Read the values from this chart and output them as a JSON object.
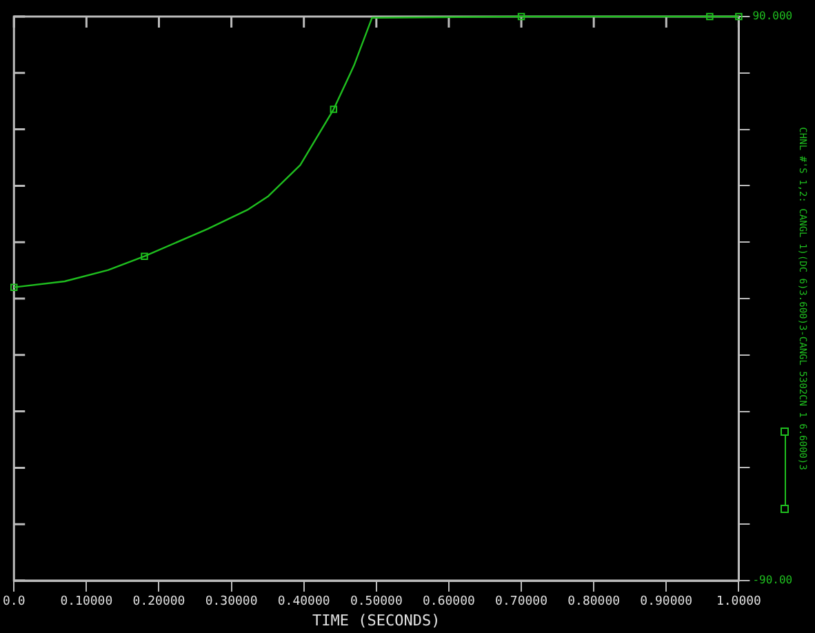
{
  "chart_data": {
    "type": "line",
    "xlabel": "TIME (SECONDS)",
    "ylabel": "CHNL #'S 1,2: CANGL 1)(DC 6)3.600)3-CANGL 5302CN 1 6.6000)3",
    "xlim": [
      0,
      1
    ],
    "ylim": [
      -90,
      90
    ],
    "xticks": [
      {
        "value": 0,
        "label": "0.0"
      },
      {
        "value": 0.1,
        "label": "0.10000"
      },
      {
        "value": 0.2,
        "label": "0.20000"
      },
      {
        "value": 0.3,
        "label": "0.30000"
      },
      {
        "value": 0.4,
        "label": "0.40000"
      },
      {
        "value": 0.5,
        "label": "0.50000"
      },
      {
        "value": 0.6,
        "label": "0.60000"
      },
      {
        "value": 0.7,
        "label": "0.70000"
      },
      {
        "value": 0.8,
        "label": "0.80000"
      },
      {
        "value": 0.9,
        "label": "0.90000"
      },
      {
        "value": 1,
        "label": "1.0000"
      }
    ],
    "yticks": [
      {
        "value": -90,
        "label": "-90.00"
      },
      {
        "value": -72,
        "label": null
      },
      {
        "value": -54,
        "label": null
      },
      {
        "value": -36,
        "label": null
      },
      {
        "value": -18,
        "label": null
      },
      {
        "value": 0,
        "label": null
      },
      {
        "value": 18,
        "label": null
      },
      {
        "value": 36,
        "label": null
      },
      {
        "value": 54,
        "label": null
      },
      {
        "value": 72,
        "label": null
      },
      {
        "value": 90,
        "label": "90.000"
      }
    ],
    "grid": false,
    "legend": false,
    "series": [
      {
        "color": "#1fbf1f",
        "marker": "none",
        "x": [
          0,
          0.07,
          0.13,
          0.18,
          0.267,
          0.322,
          0.351,
          0.395,
          0.441,
          0.469,
          0.494,
          0.7,
          0.96,
          1.0
        ],
        "values": [
          3.6,
          5.5,
          9.1,
          13.5,
          22.2,
          28.3,
          32.7,
          42.6,
          60.4,
          74.3,
          89.6,
          90,
          90,
          90
        ]
      },
      {
        "type": "scatter",
        "color": "#1fbf1f",
        "marker": "square",
        "x": [
          0,
          0.18,
          0.441,
          0.7,
          0.96,
          1.0
        ],
        "values": [
          3.6,
          13.5,
          60.4,
          90,
          90,
          90
        ]
      }
    ]
  }
}
